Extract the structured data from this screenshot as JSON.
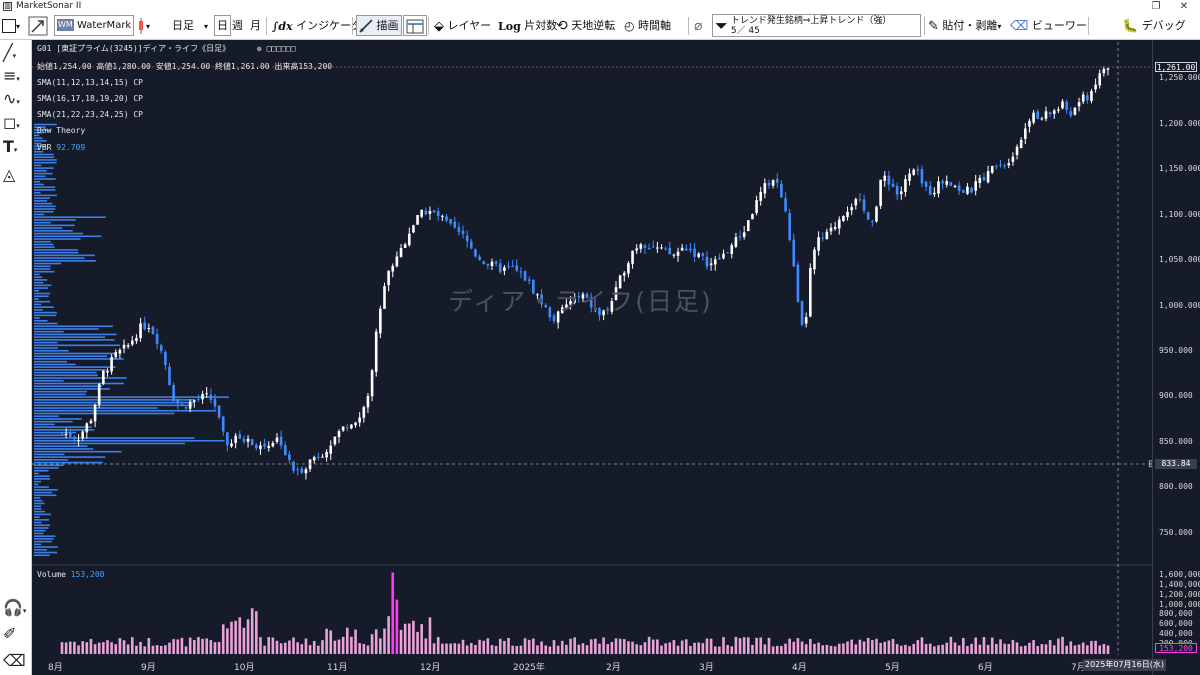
{
  "window": {
    "title": "MarketSonar II",
    "restore_symbol": "❐",
    "close_symbol": "✕"
  },
  "toolbar": {
    "watermark_label": "WaterMark",
    "period_selected": "日足",
    "period_day": "日",
    "period_week": "週",
    "period_month": "月",
    "indicator_label": "インジケータ",
    "draw_label": "描画",
    "layer_label": "レイヤー",
    "log_label": "片対数",
    "invert_label": "天地逆転",
    "time_axis_label": "時間軸",
    "screener_line1": "トレンド発生銘柄⇒上昇トレンド（強）",
    "screener_line2": "5／ 45",
    "paste_label": "貼付・剥離",
    "viewer_label": "ビューワー",
    "debug_label": "デバッグ",
    "icons": [
      "rectangle-icon",
      "arrow-icon",
      "watermark-icon",
      "candle-icon",
      "dx-icon",
      "draw-icon",
      "table-icon",
      "layer-icon",
      "log-icon",
      "invert-icon",
      "clock-icon",
      "clip-icon",
      "filter-icon",
      "paste-icon",
      "viewer-icon",
      "debug-icon"
    ]
  },
  "chart": {
    "header": "G01 [東証プライム(3245)]ディア・ライフ《日足》",
    "header_boxes": "□□□□□□",
    "ohlc": "始値1,254.00 高値1,280.00 安値1,254.00 終値1,261.00 出来高153,200",
    "sma1": "SMA(11,12,13,14,15)  CP",
    "sma2": "SMA(16,17,18,19,20)  CP",
    "sma3": "SMA(21,22,23,24,25)  CP",
    "dow": "Dow Theory",
    "vbr_label": "VBR",
    "vbr_value": "92.709",
    "watermark": "ディア・ライフ(日足)",
    "last_price": "1,261.00",
    "crosshair_price": "833.84",
    "volume_label": "Volume",
    "volume_value": "153,200",
    "volume_box": "153,200",
    "date_box": "2025年07月16日(水)",
    "colors": {
      "bg": "#161b29",
      "up": "#ffffff",
      "down": "#3d8bff",
      "volume": "#e9a3d8",
      "volume_hi": "#ff3df0",
      "profile": "#3f8cff"
    }
  },
  "chart_data": {
    "type": "candlestick",
    "title": "ディア・ライフ(日足)",
    "ylim": [
      720,
      1290
    ],
    "y_ticks": [
      "1,250.000",
      "1,200.000",
      "1,150.000",
      "1,100.000",
      "1,050.000",
      "1,000.000",
      "950.000",
      "900.000",
      "850.000",
      "800.000",
      "750.000"
    ],
    "x_ticks": [
      "8月",
      "9月",
      "10月",
      "11月",
      "12月",
      "2025年",
      "2月",
      "3月",
      "4月",
      "5月",
      "6月",
      "7月"
    ],
    "volume_ticks": [
      "1,600,000",
      "1,400,000",
      "1,200,000",
      "1,000,000",
      "800,000",
      "600,000",
      "400,000",
      "200,000"
    ],
    "volume_ylim": [
      0,
      1700000
    ],
    "price_path": [
      [
        0,
        860
      ],
      [
        8,
        855
      ],
      [
        14,
        875
      ],
      [
        20,
        925
      ],
      [
        26,
        945
      ],
      [
        32,
        955
      ],
      [
        38,
        975
      ],
      [
        42,
        980
      ],
      [
        46,
        965
      ],
      [
        50,
        940
      ],
      [
        54,
        900
      ],
      [
        58,
        888
      ],
      [
        64,
        895
      ],
      [
        70,
        900
      ],
      [
        74,
        895
      ],
      [
        80,
        845
      ],
      [
        86,
        855
      ],
      [
        92,
        850
      ],
      [
        98,
        845
      ],
      [
        102,
        850
      ],
      [
        106,
        855
      ],
      [
        110,
        830
      ],
      [
        114,
        815
      ],
      [
        118,
        822
      ],
      [
        122,
        832
      ],
      [
        128,
        840
      ],
      [
        134,
        858
      ],
      [
        140,
        872
      ],
      [
        146,
        878
      ],
      [
        150,
        905
      ],
      [
        154,
        985
      ],
      [
        158,
        1030
      ],
      [
        162,
        1050
      ],
      [
        166,
        1065
      ],
      [
        170,
        1085
      ],
      [
        174,
        1098
      ],
      [
        178,
        1105
      ],
      [
        184,
        1098
      ],
      [
        190,
        1085
      ],
      [
        196,
        1075
      ],
      [
        202,
        1055
      ],
      [
        208,
        1045
      ],
      [
        214,
        1040
      ],
      [
        220,
        1040
      ],
      [
        226,
        1030
      ],
      [
        232,
        1010
      ],
      [
        236,
        995
      ],
      [
        240,
        985
      ],
      [
        244,
        995
      ],
      [
        248,
        1005
      ],
      [
        254,
        1010
      ],
      [
        258,
        1000
      ],
      [
        262,
        990
      ],
      [
        266,
        995
      ],
      [
        270,
        1015
      ],
      [
        274,
        1040
      ],
      [
        278,
        1060
      ],
      [
        282,
        1070
      ],
      [
        288,
        1065
      ],
      [
        292,
        1060
      ],
      [
        298,
        1055
      ],
      [
        304,
        1065
      ],
      [
        310,
        1055
      ],
      [
        316,
        1045
      ],
      [
        320,
        1050
      ],
      [
        324,
        1060
      ],
      [
        328,
        1070
      ],
      [
        332,
        1080
      ],
      [
        336,
        1100
      ],
      [
        340,
        1120
      ],
      [
        344,
        1135
      ],
      [
        348,
        1140
      ],
      [
        352,
        1110
      ],
      [
        356,
        1060
      ],
      [
        358,
        1010
      ],
      [
        362,
        960
      ],
      [
        364,
        1030
      ],
      [
        368,
        1070
      ],
      [
        372,
        1075
      ],
      [
        376,
        1085
      ],
      [
        380,
        1100
      ],
      [
        384,
        1110
      ],
      [
        388,
        1115
      ],
      [
        392,
        1100
      ],
      [
        396,
        1095
      ],
      [
        400,
        1145
      ],
      [
        404,
        1135
      ],
      [
        408,
        1120
      ],
      [
        412,
        1140
      ],
      [
        416,
        1150
      ],
      [
        420,
        1130
      ],
      [
        424,
        1125
      ],
      [
        428,
        1135
      ],
      [
        432,
        1140
      ],
      [
        436,
        1130
      ],
      [
        440,
        1125
      ],
      [
        444,
        1128
      ],
      [
        448,
        1140
      ],
      [
        452,
        1145
      ],
      [
        456,
        1160
      ],
      [
        460,
        1155
      ],
      [
        464,
        1170
      ],
      [
        468,
        1185
      ],
      [
        472,
        1210
      ],
      [
        476,
        1205
      ],
      [
        480,
        1210
      ],
      [
        484,
        1215
      ],
      [
        488,
        1220
      ],
      [
        492,
        1210
      ],
      [
        496,
        1225
      ],
      [
        500,
        1230
      ],
      [
        504,
        1245
      ],
      [
        508,
        1261
      ]
    ],
    "volume_max_day": "11月",
    "volume_max": 1650000,
    "last_close": 1261.0,
    "last_volume": 153200
  }
}
